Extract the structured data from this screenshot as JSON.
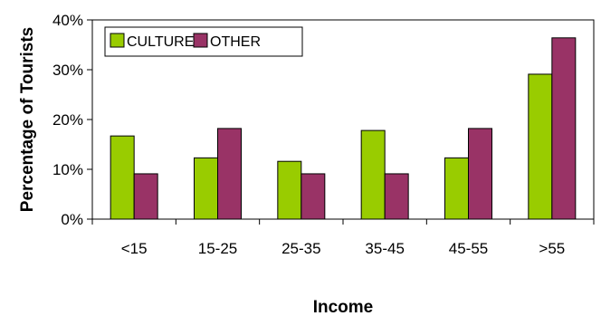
{
  "chart_data": {
    "type": "bar",
    "categories": [
      "<15",
      "15-25",
      "25-35",
      "35-45",
      "45-55",
      ">55"
    ],
    "series": [
      {
        "name": "CULTURE",
        "color": "#99cc00",
        "values": [
          16.7,
          12.3,
          11.6,
          17.8,
          12.3,
          29.1
        ]
      },
      {
        "name": "OTHER",
        "color": "#993366",
        "values": [
          9.1,
          18.2,
          9.1,
          9.1,
          18.2,
          36.4
        ]
      }
    ],
    "xlabel": "Income",
    "ylabel": "Percentage of Tourists",
    "ylim": [
      0,
      40
    ],
    "yticks": [
      "0%",
      "10%",
      "20%",
      "30%",
      "40%"
    ],
    "ytick_values": [
      0,
      10,
      20,
      30,
      40
    ],
    "legend_position": "top-left",
    "grid": false
  }
}
